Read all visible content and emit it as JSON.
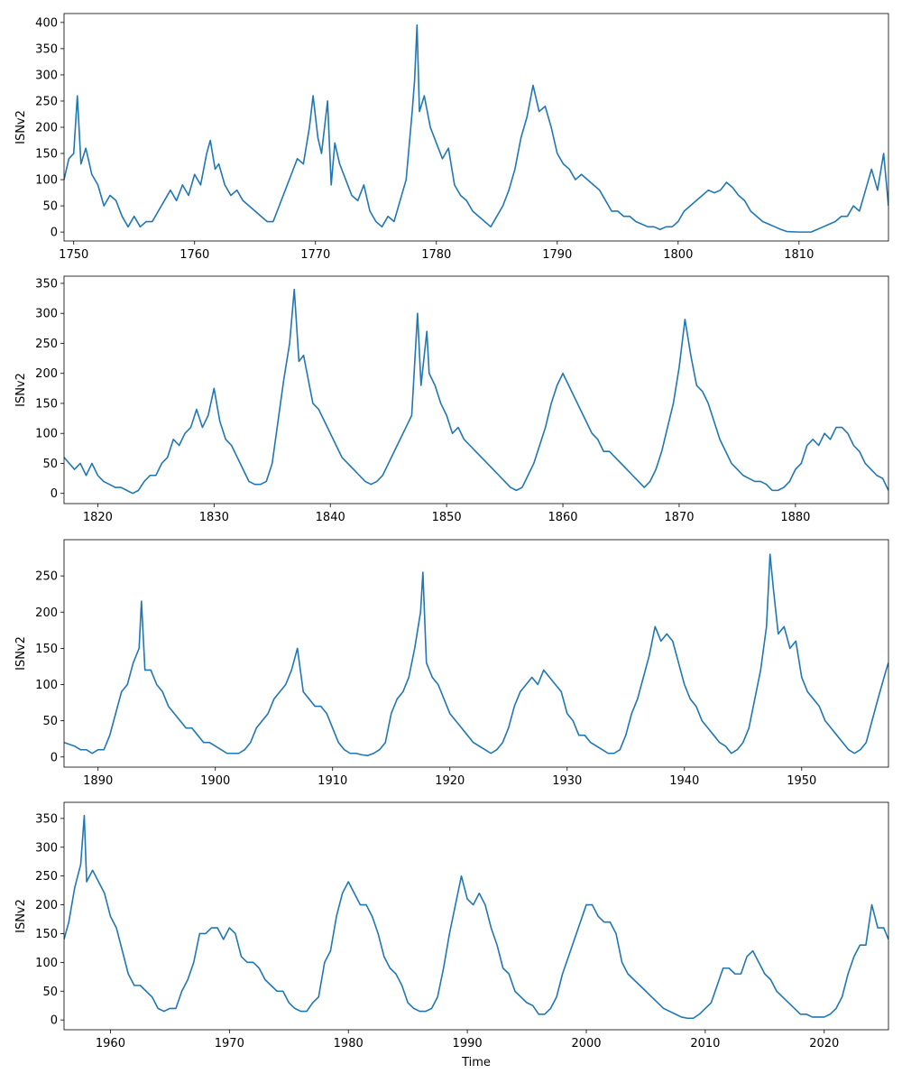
{
  "chart_data": [
    {
      "type": "line",
      "ylabel": "ISNv2",
      "color": "#1f77b4",
      "xlim": [
        1749.2,
        1817.4
      ],
      "ylim": [
        -17,
        417
      ],
      "xticks": [
        1750,
        1760,
        1770,
        1780,
        1790,
        1800,
        1810
      ],
      "yticks": [
        0,
        50,
        100,
        150,
        200,
        250,
        300,
        350,
        400
      ],
      "x": [
        1749.2,
        1749.6,
        1750,
        1750.3,
        1750.6,
        1751,
        1751.5,
        1752,
        1752.5,
        1753,
        1753.5,
        1754,
        1754.5,
        1755,
        1755.5,
        1756,
        1756.5,
        1757,
        1757.5,
        1758,
        1758.5,
        1759,
        1759.5,
        1760,
        1760.5,
        1761,
        1761.3,
        1761.7,
        1762,
        1762.5,
        1763,
        1763.5,
        1764,
        1765,
        1765.5,
        1766,
        1766.5,
        1767,
        1767.5,
        1768,
        1768.5,
        1769,
        1769.5,
        1769.8,
        1770.2,
        1770.5,
        1771,
        1771.3,
        1771.6,
        1772,
        1772.5,
        1773,
        1773.5,
        1774,
        1774.5,
        1775,
        1775.5,
        1776,
        1776.5,
        1777,
        1777.5,
        1778,
        1778.2,
        1778.4,
        1778.6,
        1779,
        1779.5,
        1780,
        1780.5,
        1781,
        1781.5,
        1782,
        1782.5,
        1783,
        1783.5,
        1784,
        1784.5,
        1785,
        1785.5,
        1786,
        1786.5,
        1787,
        1787.5,
        1788,
        1788.5,
        1789,
        1789.5,
        1790,
        1790.5,
        1791,
        1791.5,
        1792,
        1793,
        1793.5,
        1794,
        1794.5,
        1795,
        1795.5,
        1796,
        1796.5,
        1797,
        1797.5,
        1798,
        1798.5,
        1799,
        1799.5,
        1800,
        1800.5,
        1801,
        1801.5,
        1802,
        1802.5,
        1803,
        1803.5,
        1804,
        1804.5,
        1805,
        1805.5,
        1806,
        1806.5,
        1807,
        1807.5,
        1808,
        1808.5,
        1809,
        1810,
        1811,
        1811.5,
        1812,
        1812.5,
        1813,
        1813.5,
        1814,
        1814.5,
        1815,
        1815.5,
        1816,
        1816.5,
        1817,
        1817.4
      ],
      "values": [
        100,
        140,
        150,
        260,
        130,
        160,
        110,
        90,
        50,
        70,
        60,
        30,
        10,
        30,
        10,
        20,
        20,
        40,
        60,
        80,
        60,
        90,
        70,
        110,
        90,
        150,
        175,
        120,
        130,
        90,
        70,
        80,
        60,
        40,
        30,
        20,
        20,
        50,
        80,
        110,
        140,
        130,
        200,
        260,
        180,
        150,
        250,
        90,
        170,
        130,
        100,
        70,
        60,
        90,
        40,
        20,
        10,
        30,
        20,
        60,
        100,
        230,
        290,
        395,
        230,
        260,
        200,
        170,
        140,
        160,
        90,
        70,
        60,
        40,
        30,
        20,
        10,
        30,
        50,
        80,
        120,
        180,
        220,
        280,
        230,
        240,
        200,
        150,
        130,
        120,
        100,
        110,
        90,
        80,
        60,
        40,
        40,
        30,
        30,
        20,
        15,
        10,
        10,
        5,
        10,
        10,
        20,
        40,
        50,
        60,
        70,
        80,
        75,
        80,
        95,
        85,
        70,
        60,
        40,
        30,
        20,
        15,
        10,
        5,
        1,
        0,
        0,
        5,
        10,
        15,
        20,
        30,
        30,
        50,
        40,
        80,
        120,
        80,
        150,
        50
      ]
    },
    {
      "type": "line",
      "ylabel": "ISNv2",
      "color": "#1f77b4",
      "xlim": [
        1817.1,
        1888.0
      ],
      "ylim": [
        -17,
        362
      ],
      "xticks": [
        1820,
        1830,
        1840,
        1850,
        1860,
        1870,
        1880
      ],
      "yticks": [
        0,
        50,
        100,
        150,
        200,
        250,
        300,
        350
      ],
      "x": [
        1817.1,
        1818,
        1818.5,
        1819,
        1819.5,
        1820,
        1820.5,
        1821,
        1821.5,
        1822,
        1822.5,
        1823,
        1823.5,
        1824,
        1824.5,
        1825,
        1825.5,
        1826,
        1826.5,
        1827,
        1827.5,
        1828,
        1828.5,
        1829,
        1829.5,
        1830,
        1830.5,
        1831,
        1831.5,
        1832,
        1832.5,
        1833,
        1833.5,
        1834,
        1834.5,
        1835,
        1835.5,
        1836,
        1836.5,
        1836.9,
        1837.3,
        1837.7,
        1838,
        1838.5,
        1839,
        1839.5,
        1840,
        1840.5,
        1841,
        1841.5,
        1842,
        1842.5,
        1843,
        1843.5,
        1844,
        1844.5,
        1845,
        1845.5,
        1846,
        1846.5,
        1847,
        1847.5,
        1847.8,
        1848.3,
        1848.5,
        1849,
        1849.5,
        1850,
        1850.5,
        1851,
        1851.5,
        1852,
        1852.5,
        1853,
        1853.5,
        1854,
        1854.5,
        1855,
        1855.5,
        1856,
        1856.5,
        1857,
        1857.5,
        1858,
        1858.5,
        1859,
        1859.5,
        1860,
        1860.5,
        1861,
        1861.5,
        1862,
        1862.5,
        1863,
        1863.5,
        1864,
        1864.5,
        1865,
        1865.5,
        1866,
        1866.5,
        1867,
        1867.5,
        1868,
        1868.5,
        1869,
        1869.5,
        1870,
        1870.5,
        1871,
        1871.5,
        1872,
        1872.5,
        1873,
        1873.5,
        1874,
        1874.5,
        1875,
        1875.5,
        1876,
        1876.5,
        1877,
        1877.5,
        1878,
        1878.5,
        1879,
        1879.5,
        1880,
        1880.5,
        1881,
        1881.5,
        1882,
        1882.5,
        1883,
        1883.5,
        1884,
        1884.5,
        1885,
        1885.5,
        1886,
        1886.5,
        1887,
        1887.5,
        1888
      ],
      "values": [
        60,
        40,
        50,
        30,
        50,
        30,
        20,
        15,
        10,
        10,
        5,
        0,
        5,
        20,
        30,
        30,
        50,
        60,
        90,
        80,
        100,
        110,
        140,
        110,
        130,
        175,
        120,
        90,
        80,
        60,
        40,
        20,
        15,
        15,
        20,
        50,
        120,
        190,
        250,
        340,
        220,
        230,
        200,
        150,
        140,
        120,
        100,
        80,
        60,
        50,
        40,
        30,
        20,
        15,
        20,
        30,
        50,
        70,
        90,
        110,
        130,
        300,
        180,
        270,
        200,
        180,
        150,
        130,
        100,
        110,
        90,
        80,
        70,
        60,
        50,
        40,
        30,
        20,
        10,
        5,
        10,
        30,
        50,
        80,
        110,
        150,
        180,
        200,
        180,
        160,
        140,
        120,
        100,
        90,
        70,
        70,
        60,
        50,
        40,
        30,
        20,
        10,
        20,
        40,
        70,
        110,
        150,
        210,
        290,
        230,
        180,
        170,
        150,
        120,
        90,
        70,
        50,
        40,
        30,
        25,
        20,
        20,
        15,
        5,
        5,
        10,
        20,
        40,
        50,
        80,
        90,
        80,
        100,
        90,
        110,
        110,
        100,
        80,
        70,
        50,
        40,
        30,
        25,
        5
      ]
    },
    {
      "type": "line",
      "ylabel": "ISNv2",
      "color": "#1f77b4",
      "xlim": [
        1887.1,
        1957.4
      ],
      "ylim": [
        -14,
        300
      ],
      "xticks": [
        1890,
        1900,
        1910,
        1920,
        1930,
        1940,
        1950
      ],
      "yticks": [
        0,
        50,
        100,
        150,
        200,
        250
      ],
      "x": [
        1887.1,
        1888,
        1888.5,
        1889,
        1889.5,
        1890,
        1890.5,
        1891,
        1891.5,
        1892,
        1892.5,
        1893,
        1893.5,
        1893.7,
        1894,
        1894.5,
        1895,
        1895.5,
        1896,
        1896.5,
        1897,
        1897.5,
        1898,
        1898.5,
        1899,
        1899.5,
        1900,
        1900.5,
        1901,
        1901.5,
        1902,
        1902.5,
        1903,
        1903.5,
        1904,
        1904.5,
        1905,
        1905.5,
        1906,
        1906.5,
        1907,
        1907.5,
        1908,
        1908.5,
        1909,
        1909.5,
        1910,
        1910.5,
        1911,
        1911.5,
        1912,
        1912.5,
        1913,
        1913.5,
        1914,
        1914.5,
        1915,
        1915.5,
        1916,
        1916.5,
        1917,
        1917.5,
        1917.7,
        1918,
        1918.5,
        1919,
        1919.5,
        1920,
        1920.5,
        1921,
        1921.5,
        1922,
        1922.5,
        1923,
        1923.5,
        1924,
        1924.5,
        1925,
        1925.5,
        1926,
        1926.5,
        1927,
        1927.5,
        1928,
        1928.5,
        1929,
        1929.5,
        1930,
        1930.5,
        1931,
        1931.5,
        1932,
        1932.5,
        1933,
        1933.5,
        1934,
        1934.5,
        1935,
        1935.5,
        1936,
        1936.5,
        1937,
        1937.5,
        1938,
        1938.5,
        1939,
        1939.5,
        1940,
        1940.5,
        1941,
        1941.5,
        1942,
        1942.5,
        1943,
        1943.5,
        1944,
        1944.5,
        1945,
        1945.5,
        1946,
        1946.5,
        1947,
        1947.3,
        1947.6,
        1948,
        1948.5,
        1949,
        1949.5,
        1950,
        1950.5,
        1951,
        1951.5,
        1952,
        1952.5,
        1953,
        1953.5,
        1954,
        1954.5,
        1955,
        1955.5,
        1956,
        1956.5,
        1957.2,
        1957.4
      ],
      "values": [
        20,
        15,
        10,
        10,
        5,
        10,
        10,
        30,
        60,
        90,
        100,
        130,
        150,
        215,
        120,
        120,
        100,
        90,
        70,
        60,
        50,
        40,
        40,
        30,
        20,
        20,
        15,
        10,
        5,
        5,
        5,
        10,
        20,
        40,
        50,
        60,
        80,
        90,
        100,
        120,
        150,
        90,
        80,
        70,
        70,
        60,
        40,
        20,
        10,
        5,
        5,
        3,
        2,
        5,
        10,
        20,
        60,
        80,
        90,
        110,
        150,
        200,
        255,
        130,
        110,
        100,
        80,
        60,
        50,
        40,
        30,
        20,
        15,
        10,
        5,
        10,
        20,
        40,
        70,
        90,
        100,
        110,
        100,
        120,
        110,
        100,
        90,
        60,
        50,
        30,
        30,
        20,
        15,
        10,
        5,
        5,
        10,
        30,
        60,
        80,
        110,
        140,
        180,
        160,
        170,
        160,
        130,
        100,
        80,
        70,
        50,
        40,
        30,
        20,
        15,
        5,
        10,
        20,
        40,
        80,
        120,
        180,
        280,
        230,
        170,
        180,
        150,
        160,
        110,
        90,
        80,
        70,
        50,
        40,
        30,
        20,
        10,
        5,
        10,
        20,
        50,
        80,
        120,
        130
      ]
    },
    {
      "type": "line",
      "ylabel": "ISNv2",
      "xlabel": "Time",
      "color": "#1f77b4",
      "xlim": [
        1956.1,
        2025.4
      ],
      "ylim": [
        -17,
        378
      ],
      "xticks": [
        1960,
        1970,
        1980,
        1990,
        2000,
        2010,
        2020
      ],
      "yticks": [
        0,
        50,
        100,
        150,
        200,
        250,
        300,
        350
      ],
      "x": [
        1956.1,
        1956.5,
        1957,
        1957.5,
        1957.8,
        1958,
        1958.5,
        1959,
        1959.5,
        1960,
        1960.5,
        1961,
        1961.5,
        1962,
        1962.5,
        1963,
        1963.5,
        1964,
        1964.5,
        1965,
        1965.5,
        1966,
        1966.5,
        1967,
        1967.5,
        1968,
        1968.5,
        1969,
        1969.5,
        1970,
        1970.5,
        1971,
        1971.5,
        1972,
        1972.5,
        1973,
        1973.5,
        1974,
        1974.5,
        1975,
        1975.5,
        1976,
        1976.5,
        1977,
        1977.5,
        1978,
        1978.5,
        1979,
        1979.5,
        1980,
        1980.5,
        1981,
        1981.5,
        1982,
        1982.5,
        1983,
        1983.5,
        1984,
        1984.5,
        1985,
        1985.5,
        1986,
        1986.5,
        1987,
        1987.5,
        1988,
        1988.5,
        1989,
        1989.5,
        1990,
        1990.5,
        1991,
        1991.5,
        1992,
        1992.5,
        1993,
        1993.5,
        1994,
        1994.5,
        1995,
        1995.5,
        1996,
        1996.5,
        1997,
        1997.5,
        1998,
        1998.5,
        1999,
        1999.5,
        2000,
        2000.5,
        2001,
        2001.5,
        2002,
        2002.5,
        2003,
        2003.5,
        2004,
        2004.5,
        2005,
        2005.5,
        2006,
        2006.5,
        2007,
        2007.5,
        2008,
        2008.5,
        2009,
        2009.5,
        2010,
        2010.5,
        2011,
        2011.5,
        2012,
        2012.5,
        2013,
        2013.5,
        2014,
        2014.5,
        2015,
        2015.5,
        2016,
        2016.5,
        2017,
        2017.5,
        2018,
        2018.5,
        2019,
        2019.5,
        2020,
        2020.5,
        2021,
        2021.5,
        2022,
        2022.5,
        2023,
        2023.5,
        2024,
        2024.5,
        2025,
        2025.4
      ],
      "values": [
        140,
        170,
        230,
        270,
        355,
        240,
        260,
        240,
        220,
        180,
        160,
        120,
        80,
        60,
        60,
        50,
        40,
        20,
        15,
        20,
        20,
        50,
        70,
        100,
        150,
        150,
        160,
        160,
        140,
        160,
        150,
        110,
        100,
        100,
        90,
        70,
        60,
        50,
        50,
        30,
        20,
        15,
        15,
        30,
        40,
        100,
        120,
        180,
        220,
        240,
        220,
        200,
        200,
        180,
        150,
        110,
        90,
        80,
        60,
        30,
        20,
        15,
        15,
        20,
        40,
        90,
        150,
        200,
        250,
        210,
        200,
        220,
        200,
        160,
        130,
        90,
        80,
        50,
        40,
        30,
        25,
        10,
        10,
        20,
        40,
        80,
        110,
        140,
        170,
        200,
        200,
        180,
        170,
        170,
        150,
        100,
        80,
        70,
        60,
        50,
        40,
        30,
        20,
        15,
        10,
        5,
        3,
        3,
        10,
        20,
        30,
        60,
        90,
        90,
        80,
        80,
        110,
        120,
        100,
        80,
        70,
        50,
        40,
        30,
        20,
        10,
        10,
        5,
        5,
        5,
        10,
        20,
        40,
        80,
        110,
        130,
        130,
        200,
        160,
        160,
        140
      ]
    }
  ]
}
